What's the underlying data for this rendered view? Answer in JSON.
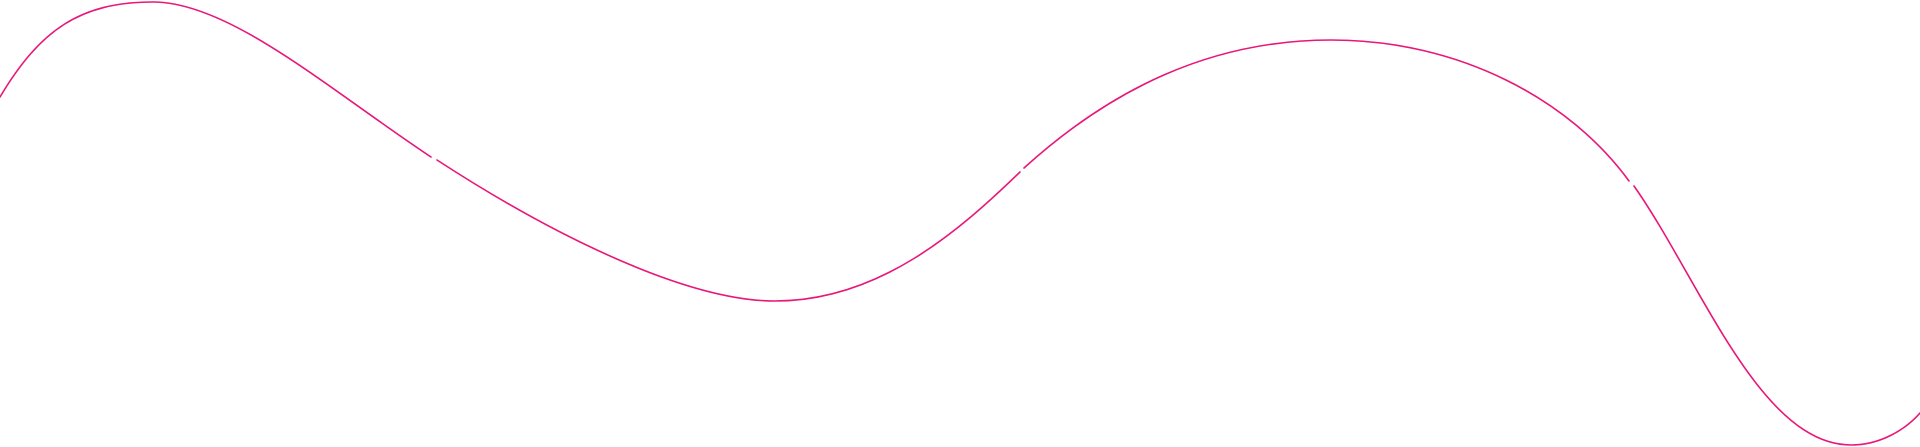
{
  "decoration": {
    "line_color": "#e8177a",
    "background_color": "#ffffff",
    "shape": "wave-line",
    "segments": 4
  }
}
